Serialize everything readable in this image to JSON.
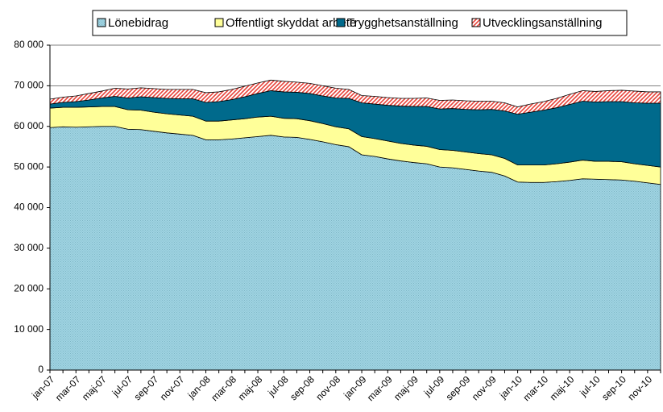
{
  "chart_data": {
    "type": "stacked_area",
    "categories": [
      "jan-07",
      null,
      "mar-07",
      null,
      "maj-07",
      null,
      "jul-07",
      null,
      "sep-07",
      null,
      "nov-07",
      null,
      "jan-08",
      null,
      "mar-08",
      null,
      "maj-08",
      null,
      "jul-08",
      null,
      "sep-08",
      null,
      "nov-08",
      null,
      "jan-09",
      null,
      "mar-09",
      null,
      "maj-09",
      null,
      "jul-09",
      null,
      "sep-09",
      null,
      "nov-09",
      null,
      "jan-10",
      null,
      "mar-10",
      null,
      "maj-10",
      null,
      "jul-10",
      null,
      "sep-10",
      null,
      "nov-10",
      null
    ],
    "series": [
      {
        "name": "Lönebidrag",
        "color": "#9fd4e2",
        "values": [
          59700,
          59900,
          59800,
          59900,
          60000,
          60000,
          59300,
          59200,
          58800,
          58400,
          58100,
          57800,
          56700,
          56700,
          56900,
          57200,
          57500,
          57800,
          57400,
          57300,
          56800,
          56200,
          55500,
          55000,
          53000,
          52600,
          52000,
          51500,
          51100,
          50800,
          50000,
          49800,
          49400,
          49000,
          48700,
          47800,
          46300,
          46200,
          46200,
          46400,
          46700,
          47100,
          47000,
          46900,
          46800,
          46500,
          46100,
          45700
        ]
      },
      {
        "name": "Offentligt skyddat arbete",
        "color": "#ffff99",
        "values": [
          4800,
          4800,
          4900,
          4900,
          4900,
          4900,
          4800,
          4800,
          4700,
          4700,
          4700,
          4700,
          4600,
          4600,
          4700,
          4700,
          4800,
          4700,
          4600,
          4600,
          4600,
          4500,
          4400,
          4400,
          4500,
          4400,
          4400,
          4300,
          4300,
          4300,
          4300,
          4300,
          4300,
          4300,
          4300,
          4300,
          4200,
          4300,
          4300,
          4400,
          4500,
          4600,
          4400,
          4500,
          4500,
          4300,
          4300,
          4300
        ]
      },
      {
        "name": "Trygghetsanställning",
        "color": "#006a8c",
        "values": [
          1000,
          1200,
          1400,
          1700,
          2100,
          2500,
          2900,
          3300,
          3600,
          3800,
          4000,
          4300,
          4600,
          4800,
          5000,
          5400,
          5800,
          6300,
          6500,
          6500,
          6700,
          6800,
          7100,
          7500,
          8300,
          8500,
          8800,
          9200,
          9500,
          9800,
          10000,
          10300,
          10500,
          10800,
          11200,
          11700,
          12500,
          13000,
          13500,
          13800,
          14200,
          14500,
          14600,
          14700,
          14800,
          15000,
          15300,
          15700
        ]
      },
      {
        "name": "Utvecklingsanställning",
        "color": "#e8433a",
        "values": [
          1200,
          1300,
          1400,
          1600,
          1700,
          2000,
          2200,
          2200,
          2200,
          2200,
          2300,
          2300,
          2400,
          2400,
          2500,
          2600,
          2600,
          2600,
          2600,
          2500,
          2500,
          2500,
          2400,
          2200,
          1800,
          1900,
          1900,
          1900,
          2000,
          2100,
          2100,
          2100,
          2100,
          2100,
          2000,
          2000,
          1800,
          2000,
          2100,
          2300,
          2500,
          2600,
          2600,
          2700,
          2800,
          2900,
          2800,
          2800
        ]
      }
    ],
    "ylim": [
      0,
      80000
    ],
    "yticks": [
      0,
      {
        "value": 10000,
        "label": "10 000"
      },
      {
        "value": 20000,
        "label": "20 000"
      },
      {
        "value": 30000,
        "label": "30 000"
      },
      {
        "value": 40000,
        "label": "40 000"
      },
      {
        "value": 50000,
        "label": "50 000"
      },
      {
        "value": 60000,
        "label": "60 000"
      },
      {
        "value": 70000,
        "label": "70 000"
      },
      {
        "value": 80000,
        "label": "80 000"
      }
    ],
    "grid": true,
    "legend": "top"
  }
}
